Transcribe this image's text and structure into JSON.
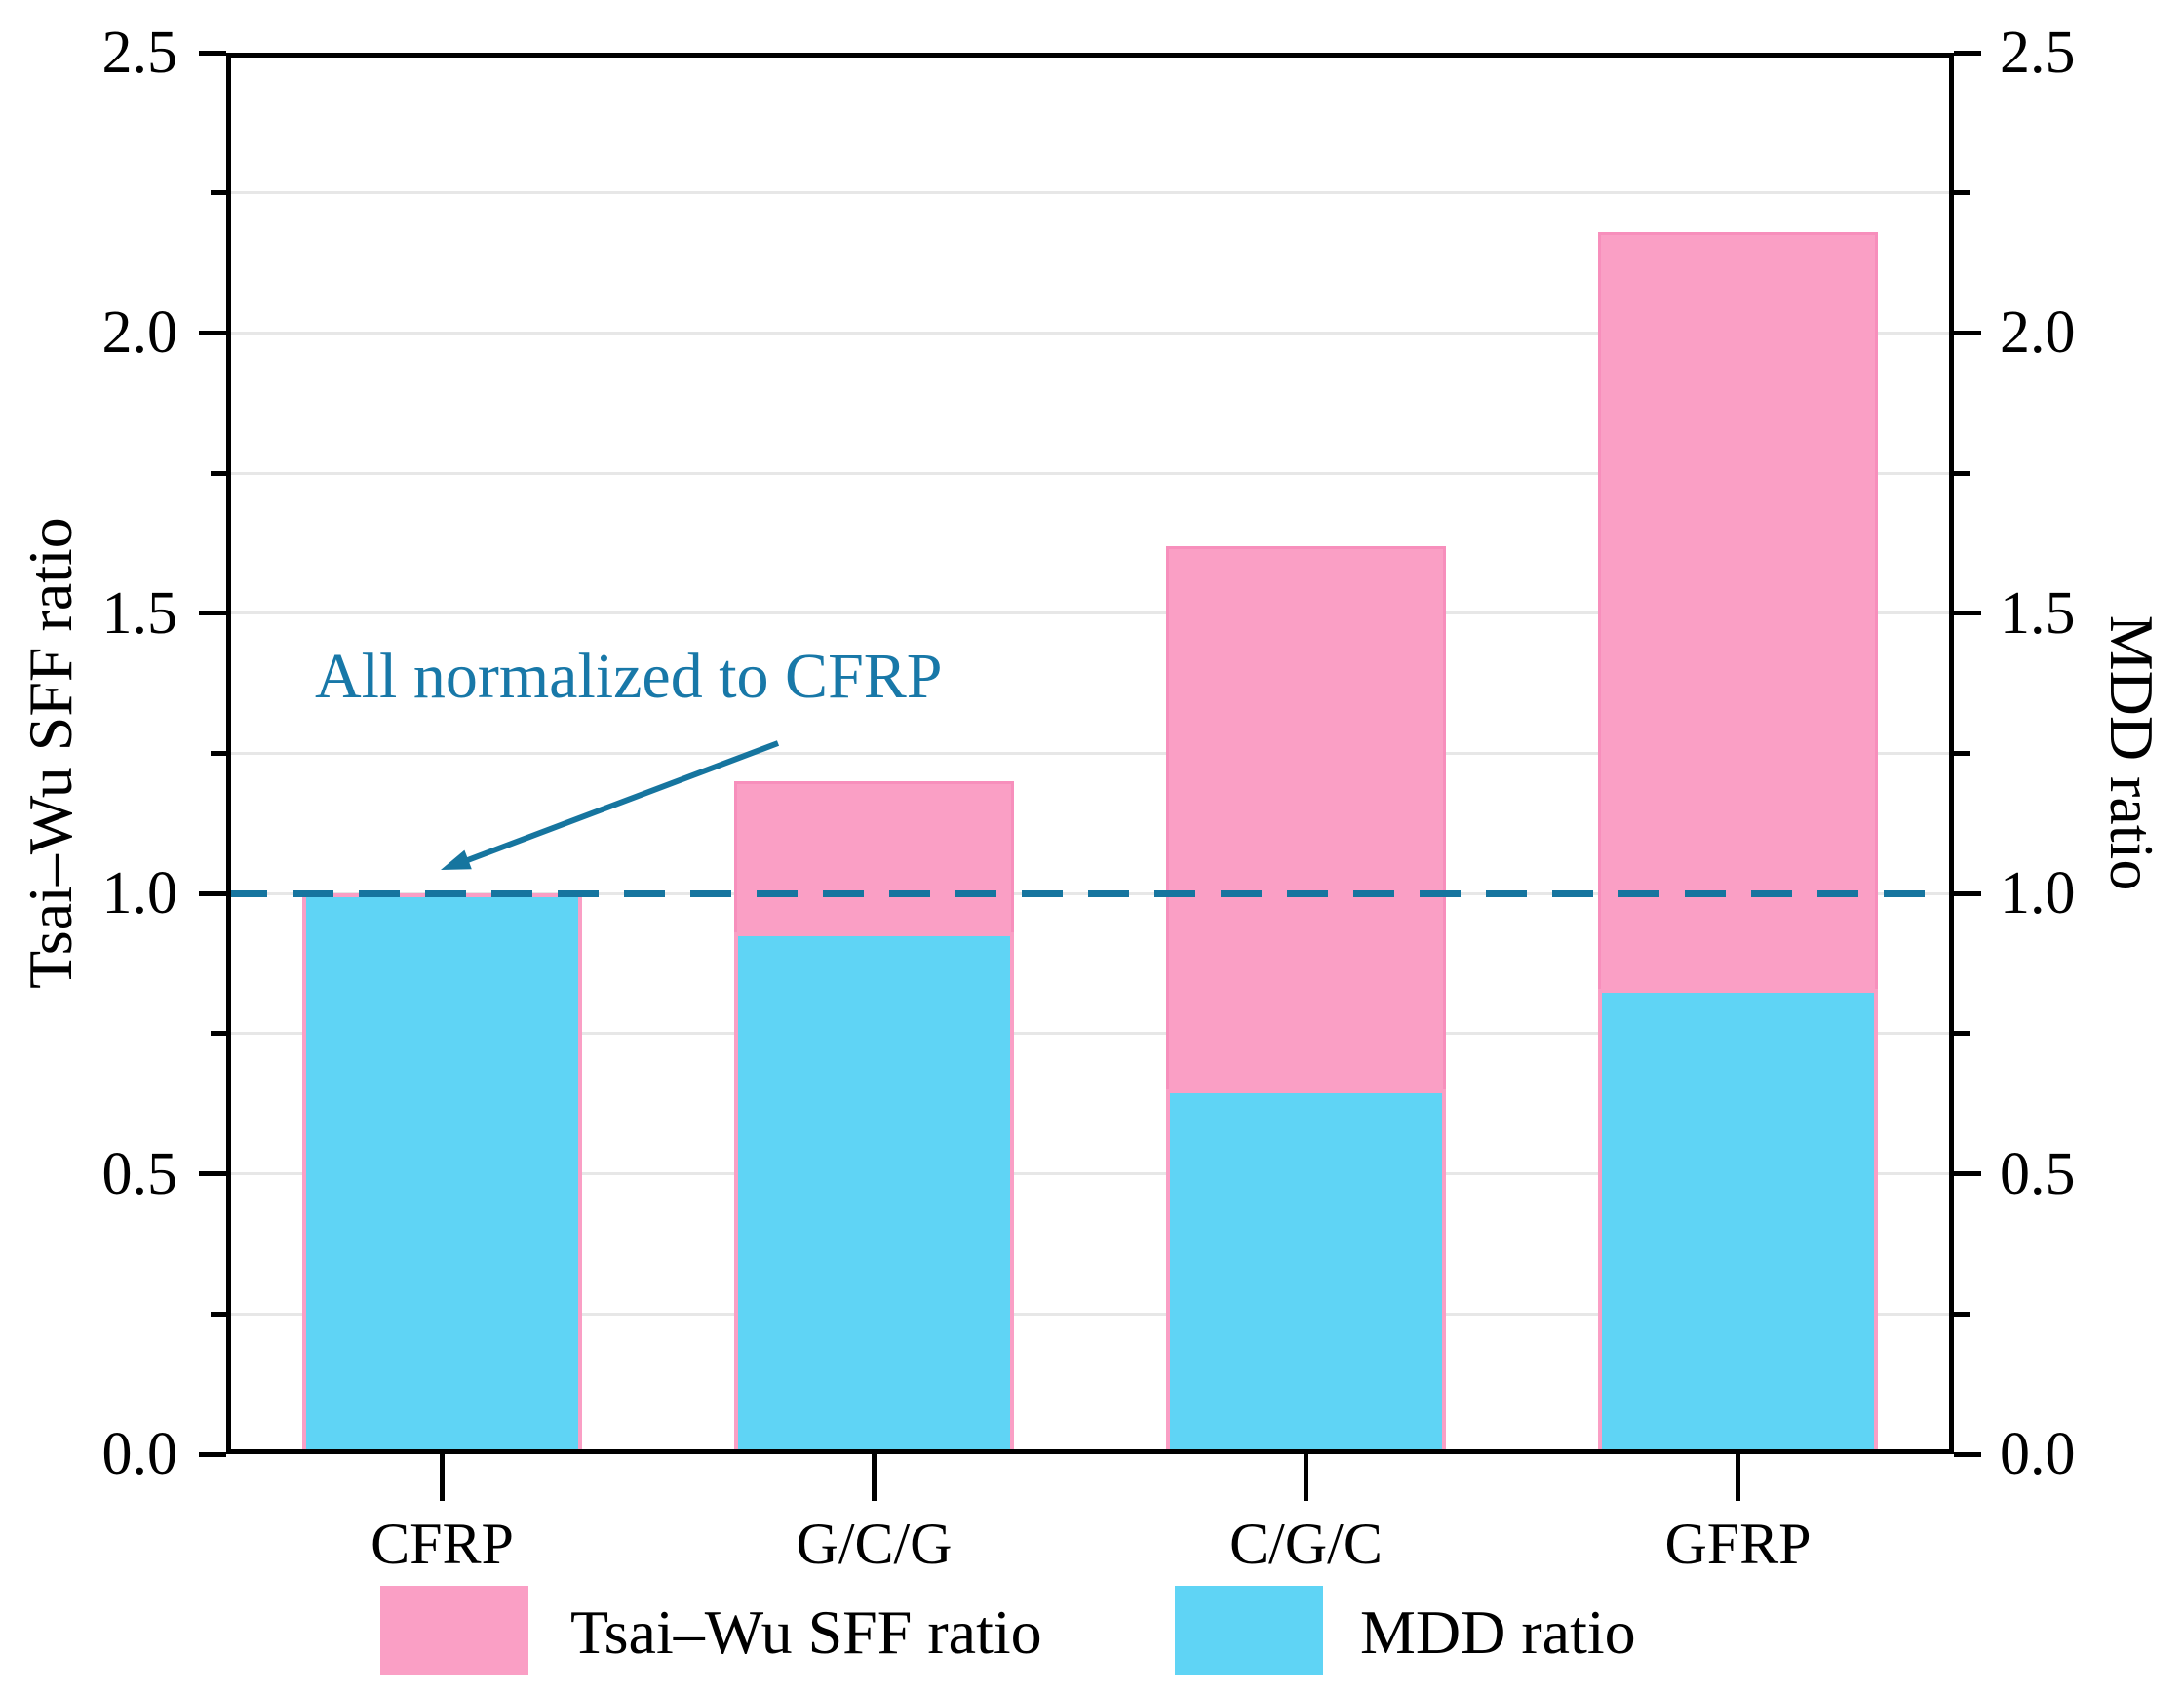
{
  "chart_data": {
    "type": "bar",
    "title": "",
    "categories": [
      "CFRP",
      "G/C/G",
      "C/G/C",
      "GFRP"
    ],
    "series": [
      {
        "name": "Tsai–Wu SFF ratio",
        "values": [
          1.0,
          1.2,
          1.62,
          2.18
        ],
        "color": "#FA9FC5",
        "edge_color": "#F78FBC"
      },
      {
        "name": "MDD ratio",
        "values": [
          1.0,
          0.93,
          0.65,
          0.83
        ],
        "color": "#5FD4F5",
        "edge_color": "#FA9FC5"
      }
    ],
    "left_axis_label": "Tsai–Wu SFF ratio",
    "right_axis_label": "MDD ratio",
    "ylim": [
      0,
      2.5
    ],
    "major_tick_step": 0.5,
    "minor_tick_step": 0.25,
    "major_tick_labels": [
      "0.0",
      "0.5",
      "1.0",
      "1.5",
      "2.0",
      "2.5"
    ],
    "grid": "horizontal gridlines every 0.25, light gray, on",
    "legend_position": "bottom",
    "reference_line": {
      "y": 1.0,
      "style": "dashed",
      "color": "#16759F"
    },
    "annotation": {
      "text": "All normalized to CFRP",
      "color": "#1878A8",
      "arrow": "points down-left to the y=1.0 dashed line"
    }
  },
  "legend": {
    "items": [
      {
        "label": "Tsai–Wu SFF ratio",
        "swatch_color": "#FA9FC5"
      },
      {
        "label": "MDD ratio",
        "swatch_color": "#5FD4F5"
      }
    ]
  },
  "colors": {
    "bar_pink": "#FA9FC5",
    "bar_blue": "#5FD4F5",
    "teal_line": "#16759F",
    "annotation_teal": "#1878A8",
    "gridline": "#e7e7e7",
    "axis_black": "#000000"
  }
}
